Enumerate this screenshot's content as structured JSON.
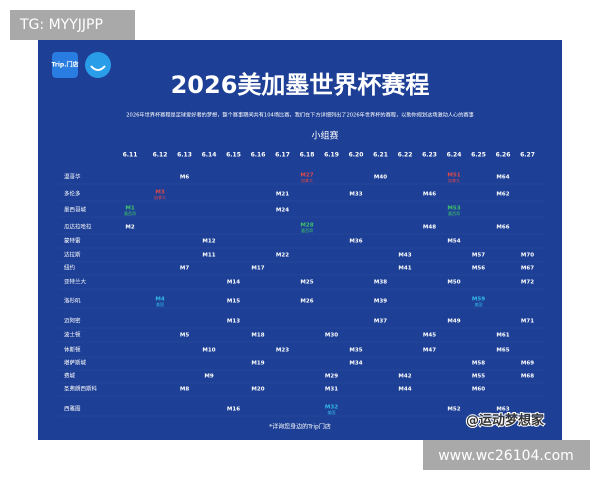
{
  "tag": "TG: MYYJJPP",
  "logo": {
    "text": "Trip.门店"
  },
  "title": "2026美加墨世界杯赛程",
  "subtitle": "2026年世界杯赛程是足球爱好者的梦想，整个赛事期间共有104场比赛，我们在下方详细列出了2026年世界杯的赛程，以助你规划这场激动人心的赛事",
  "stage": "小组赛",
  "dates": [
    "6.11",
    "6.12",
    "6.13",
    "6.14",
    "6.15",
    "6.16",
    "6.17",
    "6.18",
    "6.19",
    "6.20",
    "6.21",
    "6.22",
    "6.23",
    "6.24",
    "6.25",
    "6.26",
    "6.27"
  ],
  "rows": [
    {
      "city": "温哥华",
      "cells": [
        null,
        null,
        "M6",
        null,
        null,
        null,
        null,
        {
          "label": "M27",
          "note": "加拿大",
          "color": "#e04848"
        },
        null,
        null,
        "M40",
        null,
        null,
        {
          "label": "M51",
          "note": "加拿大",
          "color": "#e04848"
        },
        null,
        "M64",
        null
      ]
    },
    {
      "city": "多伦多",
      "cells": [
        null,
        {
          "label": "M3",
          "note": "加拿大",
          "color": "#e04848"
        },
        null,
        null,
        null,
        null,
        "M21",
        null,
        null,
        "M33",
        null,
        null,
        "M46",
        null,
        null,
        "M62",
        null
      ]
    },
    {
      "city": "墨西哥城",
      "cells": [
        {
          "label": "M1",
          "note": "墨西哥",
          "color": "#3fc46a"
        },
        null,
        null,
        null,
        null,
        null,
        "M24",
        null,
        null,
        null,
        null,
        null,
        null,
        {
          "label": "M53",
          "note": "墨西哥",
          "color": "#3fc46a"
        },
        null,
        null,
        null
      ]
    },
    {
      "city": "瓜达拉哈拉",
      "cells": [
        "M2",
        null,
        null,
        null,
        null,
        null,
        null,
        {
          "label": "M28",
          "note": "墨西哥",
          "color": "#3fc46a"
        },
        null,
        null,
        null,
        null,
        "M48",
        null,
        null,
        "M66",
        null
      ]
    },
    {
      "city": "蒙特雷",
      "cells": [
        null,
        null,
        null,
        "M12",
        null,
        null,
        null,
        null,
        null,
        "M36",
        null,
        null,
        null,
        "M54",
        null,
        null,
        null
      ]
    },
    {
      "city": "达拉斯",
      "cells": [
        null,
        null,
        null,
        "M11",
        null,
        null,
        "M22",
        null,
        null,
        null,
        null,
        "M43",
        null,
        null,
        "M57",
        null,
        "M70"
      ]
    },
    {
      "city": "纽约",
      "cells": [
        null,
        null,
        "M7",
        null,
        null,
        "M17",
        null,
        null,
        null,
        null,
        null,
        "M41",
        null,
        null,
        "M56",
        null,
        "M67"
      ]
    },
    {
      "city": "亚特兰大",
      "cells": [
        null,
        null,
        null,
        null,
        "M14",
        null,
        null,
        "M25",
        null,
        null,
        "M38",
        null,
        null,
        "M50",
        null,
        null,
        "M72"
      ]
    },
    {
      "city": "洛杉矶",
      "cells": [
        null,
        {
          "label": "M4",
          "note": "美国",
          "color": "#35b8e8"
        },
        null,
        null,
        "M15",
        null,
        null,
        "M26",
        null,
        null,
        "M39",
        null,
        null,
        null,
        {
          "label": "M59",
          "note": "美国",
          "color": "#35b8e8"
        },
        null,
        null
      ]
    },
    {
      "city": "迈阿密",
      "cells": [
        null,
        null,
        null,
        null,
        "M13",
        null,
        null,
        null,
        null,
        null,
        "M37",
        null,
        null,
        "M49",
        null,
        null,
        "M71"
      ]
    },
    {
      "city": "波士顿",
      "cells": [
        null,
        null,
        "M5",
        null,
        null,
        "M18",
        null,
        null,
        "M30",
        null,
        null,
        null,
        "M45",
        null,
        null,
        "M61",
        null
      ]
    },
    {
      "city": "休斯顿",
      "cells": [
        null,
        null,
        null,
        "M10",
        null,
        null,
        "M23",
        null,
        null,
        "M35",
        null,
        null,
        "M47",
        null,
        null,
        "M65",
        null
      ]
    },
    {
      "city": "堪萨斯城",
      "cells": [
        null,
        null,
        null,
        null,
        null,
        "M19",
        null,
        null,
        null,
        "M34",
        null,
        null,
        null,
        null,
        "M58",
        null,
        "M69"
      ]
    },
    {
      "city": "费城",
      "cells": [
        null,
        null,
        null,
        "M9",
        null,
        null,
        null,
        null,
        "M29",
        null,
        null,
        "M42",
        null,
        null,
        "M55",
        null,
        "M68"
      ]
    },
    {
      "city": "圣弗朗西斯科",
      "cells": [
        null,
        null,
        "M8",
        null,
        null,
        "M20",
        null,
        null,
        "M31",
        null,
        null,
        "M44",
        null,
        null,
        "M60",
        null,
        null
      ]
    },
    {
      "city": "西雅图",
      "cells": [
        null,
        null,
        null,
        null,
        "M16",
        null,
        null,
        null,
        {
          "label": "M32",
          "note": "美国",
          "color": "#35b8e8"
        },
        null,
        null,
        null,
        null,
        "M52",
        null,
        "M63",
        null
      ]
    }
  ],
  "footer": "*详询您身边的Trip门店",
  "watermark": "@运动梦想家",
  "site": "www.wc26104.com"
}
